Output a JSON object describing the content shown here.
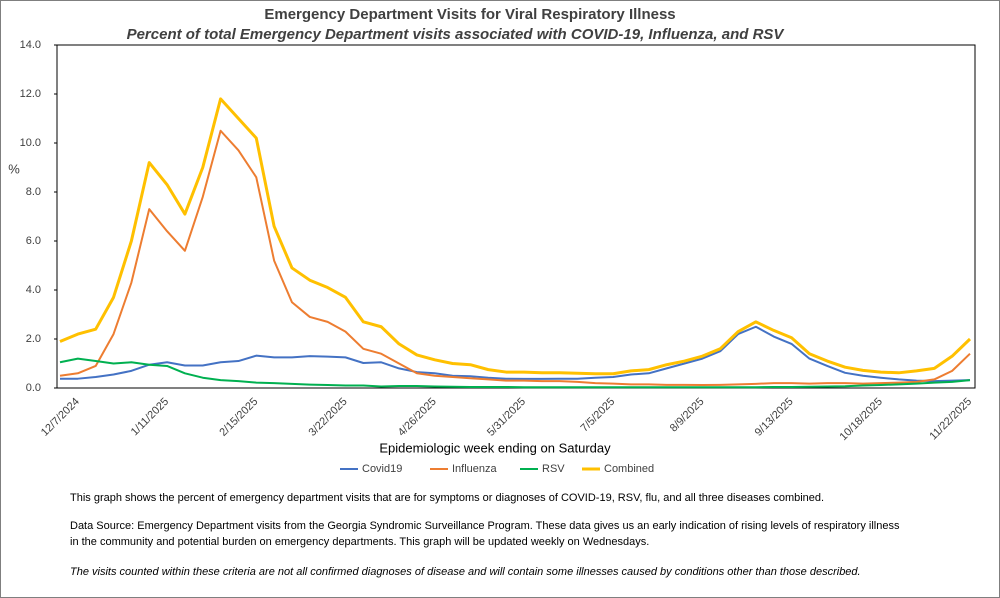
{
  "chart_data": {
    "type": "line",
    "title": "Emergency Department Visits for Viral Respiratory Illness",
    "subtitle": "Percent of total Emergency Department visits associated with COVID-19, Influenza, and RSV",
    "y_label": "%",
    "x_label": "Epidemiologic  week ending on Saturday",
    "categories": [
      null,
      "12/7/2024",
      null,
      null,
      null,
      null,
      "1/11/2025",
      null,
      null,
      null,
      null,
      "2/15/2025",
      null,
      null,
      null,
      null,
      "3/22/2025",
      null,
      null,
      null,
      null,
      "4/26/2025",
      null,
      null,
      null,
      null,
      "5/31/2025",
      null,
      null,
      null,
      null,
      "7/5/2025",
      null,
      null,
      null,
      null,
      "8/9/2025",
      null,
      null,
      null,
      null,
      "9/13/2025",
      null,
      null,
      null,
      null,
      "10/18/2025",
      null,
      null,
      null,
      null,
      "11/22/2025"
    ],
    "series": [
      {
        "name": "Covid19",
        "color": "#4472c4",
        "values": [
          0.38,
          0.38,
          0.45,
          0.55,
          0.7,
          0.95,
          1.05,
          0.92,
          0.92,
          1.05,
          1.1,
          1.32,
          1.25,
          1.25,
          1.3,
          1.28,
          1.25,
          1.02,
          1.05,
          0.8,
          0.65,
          0.6,
          0.5,
          0.48,
          0.42,
          0.38,
          0.37,
          0.37,
          0.38,
          0.38,
          0.42,
          0.45,
          0.55,
          0.6,
          0.8,
          1.0,
          1.2,
          1.5,
          2.2,
          2.5,
          2.1,
          1.8,
          1.2,
          0.9,
          0.62,
          0.5,
          0.42,
          0.35,
          0.3,
          0.28,
          0.3,
          0.32
        ]
      },
      {
        "name": "Influenza",
        "color": "#ed7d31",
        "values": [
          0.5,
          0.6,
          0.9,
          2.2,
          4.3,
          7.3,
          6.4,
          5.6,
          7.8,
          10.5,
          9.7,
          8.6,
          5.2,
          3.5,
          2.9,
          2.7,
          2.3,
          1.6,
          1.4,
          1.0,
          0.6,
          0.5,
          0.45,
          0.4,
          0.35,
          0.3,
          0.3,
          0.28,
          0.28,
          0.25,
          0.2,
          0.18,
          0.15,
          0.15,
          0.13,
          0.13,
          0.12,
          0.13,
          0.15,
          0.17,
          0.2,
          0.2,
          0.18,
          0.2,
          0.2,
          0.18,
          0.2,
          0.22,
          0.25,
          0.35,
          0.7,
          1.4
        ]
      },
      {
        "name": "RSV",
        "color": "#00b050",
        "values": [
          1.05,
          1.2,
          1.1,
          1.0,
          1.05,
          0.95,
          0.9,
          0.6,
          0.42,
          0.32,
          0.28,
          0.22,
          0.2,
          0.17,
          0.14,
          0.12,
          0.1,
          0.1,
          0.06,
          0.08,
          0.08,
          0.06,
          0.05,
          0.04,
          0.04,
          0.04,
          0.03,
          0.03,
          0.03,
          0.03,
          0.03,
          0.03,
          0.03,
          0.03,
          0.03,
          0.03,
          0.03,
          0.03,
          0.03,
          0.03,
          0.04,
          0.04,
          0.05,
          0.06,
          0.07,
          0.1,
          0.12,
          0.15,
          0.18,
          0.22,
          0.25,
          0.32
        ]
      },
      {
        "name": "Combined",
        "color": "#ffc000",
        "values": [
          1.9,
          2.2,
          2.4,
          3.7,
          6.0,
          9.2,
          8.3,
          7.1,
          9.0,
          11.8,
          11.0,
          10.2,
          6.6,
          4.9,
          4.4,
          4.1,
          3.7,
          2.7,
          2.5,
          1.8,
          1.35,
          1.15,
          1.0,
          0.95,
          0.75,
          0.65,
          0.65,
          0.62,
          0.62,
          0.6,
          0.58,
          0.58,
          0.7,
          0.75,
          0.95,
          1.1,
          1.3,
          1.6,
          2.3,
          2.7,
          2.35,
          2.05,
          1.4,
          1.1,
          0.85,
          0.72,
          0.65,
          0.62,
          0.7,
          0.8,
          1.3,
          2.0
        ]
      }
    ],
    "ylim": [
      0,
      14
    ],
    "yticks": [
      {
        "value": 0,
        "label": "0.0"
      },
      {
        "value": 2,
        "label": "2.0"
      },
      {
        "value": 4,
        "label": "4.0"
      },
      {
        "value": 6,
        "label": "6.0"
      },
      {
        "value": 8,
        "label": "8.0"
      },
      {
        "value": 10,
        "label": "10.0"
      },
      {
        "value": 12,
        "label": "12.0"
      },
      {
        "value": 14,
        "label": "14.0"
      }
    ],
    "legend": "bottom",
    "notes": [
      "This graph shows the percent of emergency department visits that are for symptoms or diagnoses of COVID-19, RSV, flu, and all three diseases combined.",
      "Data Source: Emergency Department visits from the Georgia Syndromic Surveillance Program. These data gives us an early indication of rising levels of respiratory illness",
      "in the community and potential burden on emergency departments. This graph will be updated weekly on Wednesdays.",
      "The visits counted within these criteria are not all confirmed diagnoses of disease and will contain some illnesses caused by conditions other than those described."
    ]
  }
}
